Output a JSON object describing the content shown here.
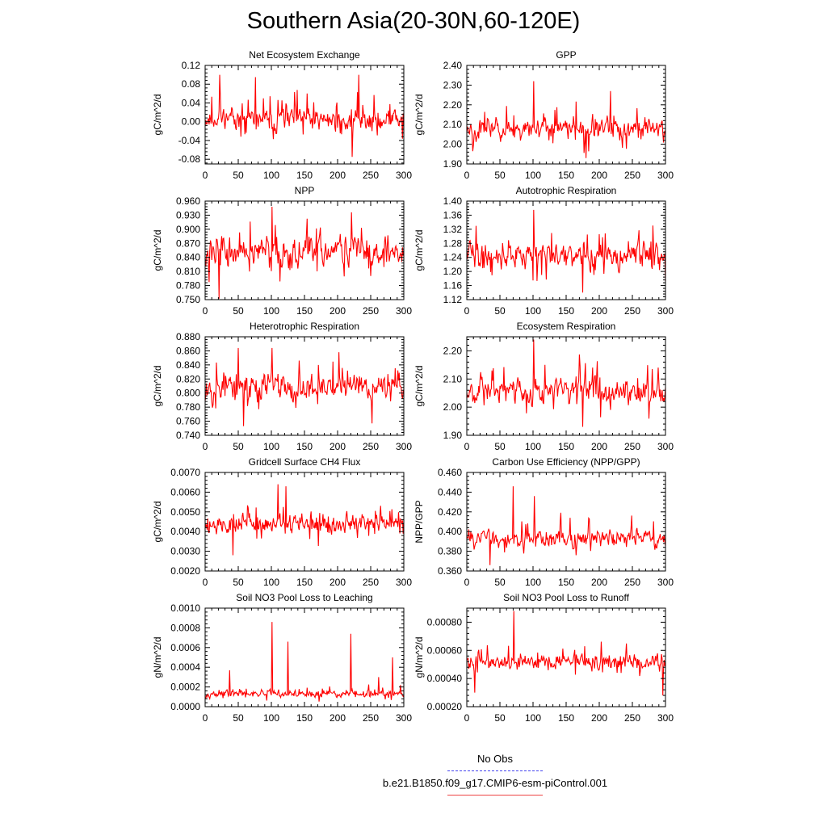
{
  "title": "Southern Asia(20-30N,60-120E)",
  "legend": {
    "items": [
      {
        "label": "No Obs",
        "color": "#4444ee",
        "style": "dashed"
      },
      {
        "label": "b.e21.B1850.f09_g17.CMIP6-esm-piControl.001",
        "color": "#ee4444",
        "style": "solid"
      }
    ]
  },
  "chart_data": [
    {
      "type": "line",
      "title": "Net Ecosystem Exchange",
      "ylabel": "gC/m^2/d",
      "xlim": [
        0,
        300
      ],
      "ylim": [
        -0.09,
        0.12
      ],
      "xticks": [
        "0",
        "50",
        "100",
        "150",
        "200",
        "250",
        "300"
      ],
      "yticks": [
        "-0.08",
        "-0.04",
        "0.00",
        "0.04",
        "0.08",
        "0.12"
      ],
      "ytick_values": [
        -0.08,
        -0.04,
        0.0,
        0.04,
        0.08,
        0.12
      ],
      "series": [
        {
          "color": "#ff0000",
          "mean": 0.005,
          "amplitude": 0.035,
          "y_min": -0.075,
          "y_max": 0.1,
          "seed": 11,
          "spikes": [
            [
              22,
              0.1
            ],
            [
              76,
              0.095
            ],
            [
              232,
              0.1
            ],
            [
              222,
              -0.075
            ]
          ]
        }
      ]
    },
    {
      "type": "line",
      "title": "GPP",
      "ylabel": "gC/m^2/d",
      "xlim": [
        0,
        300
      ],
      "ylim": [
        1.9,
        2.4
      ],
      "xticks": [
        "0",
        "50",
        "100",
        "150",
        "200",
        "250",
        "300"
      ],
      "yticks": [
        "1.90",
        "2.00",
        "2.10",
        "2.20",
        "2.30",
        "2.40"
      ],
      "ytick_values": [
        1.9,
        2.0,
        2.1,
        2.2,
        2.3,
        2.4
      ],
      "series": [
        {
          "color": "#ff0000",
          "mean": 2.08,
          "amplitude": 0.08,
          "y_min": 1.92,
          "y_max": 2.32,
          "seed": 23,
          "spikes": [
            [
              101,
              2.32
            ],
            [
              217,
              2.27
            ],
            [
              180,
              1.93
            ]
          ]
        }
      ]
    },
    {
      "type": "line",
      "title": "NPP",
      "ylabel": "gC/m^2/d",
      "xlim": [
        0,
        300
      ],
      "ylim": [
        0.75,
        0.96
      ],
      "xticks": [
        "0",
        "50",
        "100",
        "150",
        "200",
        "250",
        "300"
      ],
      "yticks": [
        "0.750",
        "0.780",
        "0.810",
        "0.840",
        "0.870",
        "0.900",
        "0.930",
        "0.960"
      ],
      "ytick_values": [
        0.75,
        0.78,
        0.81,
        0.84,
        0.87,
        0.9,
        0.93,
        0.96
      ],
      "series": [
        {
          "color": "#ff0000",
          "mean": 0.852,
          "amplitude": 0.045,
          "y_min": 0.752,
          "y_max": 0.948,
          "seed": 37,
          "spikes": [
            [
              101,
              0.948
            ],
            [
              221,
              0.936
            ],
            [
              21,
              0.752
            ]
          ]
        }
      ]
    },
    {
      "type": "line",
      "title": "Autotrophic Respiration",
      "ylabel": "gC/m^2/d",
      "xlim": [
        0,
        300
      ],
      "ylim": [
        1.12,
        1.4
      ],
      "xticks": [
        "0",
        "50",
        "100",
        "150",
        "200",
        "250",
        "300"
      ],
      "yticks": [
        "1.12",
        "1.16",
        "1.20",
        "1.24",
        "1.28",
        "1.32",
        "1.36",
        "1.40"
      ],
      "ytick_values": [
        1.12,
        1.16,
        1.2,
        1.24,
        1.28,
        1.32,
        1.36,
        1.4
      ],
      "series": [
        {
          "color": "#ff0000",
          "mean": 1.245,
          "amplitude": 0.05,
          "y_min": 1.14,
          "y_max": 1.375,
          "seed": 41,
          "spikes": [
            [
              101,
              1.375
            ],
            [
              175,
              1.14
            ]
          ]
        }
      ]
    },
    {
      "type": "line",
      "title": "Heterotrophic Respiration",
      "ylabel": "gC/m^2/d",
      "xlim": [
        0,
        300
      ],
      "ylim": [
        0.74,
        0.88
      ],
      "xticks": [
        "0",
        "50",
        "100",
        "150",
        "200",
        "250",
        "300"
      ],
      "yticks": [
        "0.740",
        "0.760",
        "0.780",
        "0.800",
        "0.820",
        "0.840",
        "0.860",
        "0.880"
      ],
      "ytick_values": [
        0.74,
        0.76,
        0.78,
        0.8,
        0.82,
        0.84,
        0.86,
        0.88
      ],
      "series": [
        {
          "color": "#ff0000",
          "mean": 0.81,
          "amplitude": 0.03,
          "y_min": 0.752,
          "y_max": 0.864,
          "seed": 53,
          "spikes": [
            [
              101,
              0.864
            ],
            [
              58,
              0.753
            ],
            [
              252,
              0.757
            ]
          ]
        }
      ]
    },
    {
      "type": "line",
      "title": "Ecosystem Respiration",
      "ylabel": "gC/m^2/d",
      "xlim": [
        0,
        300
      ],
      "ylim": [
        1.9,
        2.25
      ],
      "xticks": [
        "0",
        "50",
        "100",
        "150",
        "200",
        "250",
        "300"
      ],
      "yticks": [
        "1.90",
        "2.00",
        "2.10",
        "2.20"
      ],
      "ytick_values": [
        1.9,
        2.0,
        2.1,
        2.2
      ],
      "series": [
        {
          "color": "#ff0000",
          "mean": 2.06,
          "amplitude": 0.06,
          "y_min": 1.92,
          "y_max": 2.24,
          "seed": 67,
          "spikes": [
            [
              101,
              2.24
            ],
            [
              175,
              1.93
            ]
          ]
        }
      ]
    },
    {
      "type": "line",
      "title": "Gridcell Surface CH4 Flux",
      "ylabel": "gC/m^2/d",
      "xlim": [
        0,
        300
      ],
      "ylim": [
        0.002,
        0.007
      ],
      "xticks": [
        "0",
        "50",
        "100",
        "150",
        "200",
        "250",
        "300"
      ],
      "yticks": [
        "0.0020",
        "0.0030",
        "0.0040",
        "0.0050",
        "0.0060",
        "0.0070"
      ],
      "ytick_values": [
        0.002,
        0.003,
        0.004,
        0.005,
        0.006,
        0.007
      ],
      "series": [
        {
          "color": "#ff0000",
          "mean": 0.0044,
          "amplitude": 0.0007,
          "y_min": 0.0027,
          "y_max": 0.0064,
          "seed": 79,
          "spikes": [
            [
              110,
              0.0064
            ],
            [
              122,
              0.0063
            ],
            [
              42,
              0.0028
            ]
          ]
        }
      ]
    },
    {
      "type": "line",
      "title": "Carbon Use Efficiency (NPP/GPP)",
      "ylabel": "NPP/GPP",
      "xlim": [
        0,
        300
      ],
      "ylim": [
        0.36,
        0.46
      ],
      "xticks": [
        "0",
        "50",
        "100",
        "150",
        "200",
        "250",
        "300"
      ],
      "yticks": [
        "0.360",
        "0.380",
        "0.400",
        "0.420",
        "0.440",
        "0.460"
      ],
      "ytick_values": [
        0.36,
        0.38,
        0.4,
        0.42,
        0.44,
        0.46
      ],
      "series": [
        {
          "color": "#ff0000",
          "mean": 0.393,
          "amplitude": 0.013,
          "y_min": 0.365,
          "y_max": 0.446,
          "seed": 83,
          "spikes": [
            [
              70,
              0.446
            ],
            [
              102,
              0.436
            ],
            [
              35,
              0.366
            ]
          ]
        }
      ]
    },
    {
      "type": "line",
      "title": "Soil NO3 Pool Loss to Leaching",
      "ylabel": "gN/m^2/d",
      "xlim": [
        0,
        300
      ],
      "ylim": [
        0.0,
        0.001
      ],
      "xticks": [
        "0",
        "50",
        "100",
        "150",
        "200",
        "250",
        "300"
      ],
      "yticks": [
        "0.0000",
        "0.0002",
        "0.0004",
        "0.0006",
        "0.0008",
        "0.0010"
      ],
      "ytick_values": [
        0.0,
        0.0002,
        0.0004,
        0.0006,
        0.0008,
        0.001
      ],
      "series": [
        {
          "color": "#ff0000",
          "mean": 0.00013,
          "amplitude": 5e-05,
          "y_min": 4e-05,
          "y_max": 0.00086,
          "seed": 97,
          "spikes": [
            [
              101,
              0.00086
            ],
            [
              125,
              0.00066
            ],
            [
              220,
              0.00074
            ],
            [
              283,
              0.0005
            ],
            [
              37,
              0.00037
            ],
            [
              262,
              0.0003
            ]
          ]
        }
      ]
    },
    {
      "type": "line",
      "title": "Soil NO3 Pool Loss to Runoff",
      "ylabel": "gN/m^2/d",
      "xlim": [
        0,
        300
      ],
      "ylim": [
        0.0002,
        0.0009
      ],
      "xticks": [
        "0",
        "50",
        "100",
        "150",
        "200",
        "250",
        "300"
      ],
      "yticks": [
        "0.00020",
        "0.00040",
        "0.00060",
        "0.00080"
      ],
      "ytick_values": [
        0.0002,
        0.0004,
        0.0006,
        0.0008
      ],
      "series": [
        {
          "color": "#ff0000",
          "mean": 0.00052,
          "amplitude": 8e-05,
          "y_min": 0.00028,
          "y_max": 0.00088,
          "seed": 101,
          "spikes": [
            [
              71,
              0.00088
            ],
            [
              296,
              0.00028
            ],
            [
              12,
              0.0003
            ]
          ]
        }
      ]
    }
  ]
}
